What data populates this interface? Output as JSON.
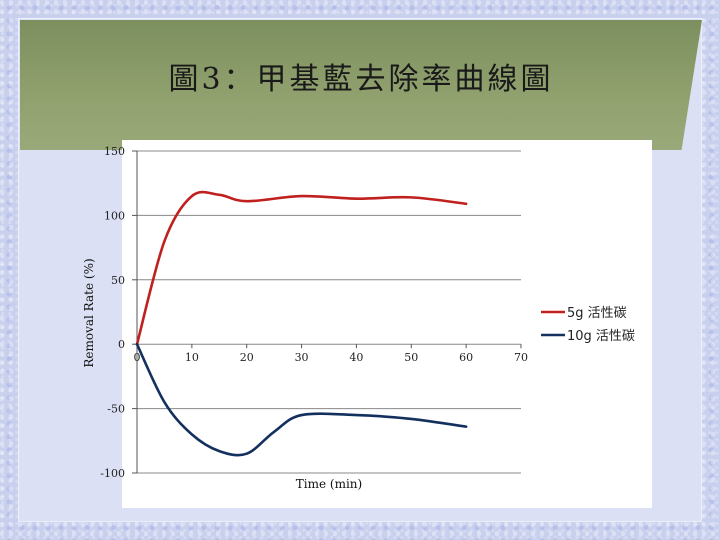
{
  "slide": {
    "title": "圖3：甲基藍去除率曲線圖"
  },
  "colors": {
    "series_5g": "#c0201e",
    "series_10g": "#13305e",
    "grid": "#888888"
  },
  "chart_data": {
    "type": "line",
    "title": "",
    "xlabel": "Time (min)",
    "ylabel": "Removal Rate (%)",
    "xlim": [
      0,
      70
    ],
    "ylim": [
      -100,
      150
    ],
    "xticks": [
      0,
      10,
      20,
      30,
      40,
      50,
      60,
      70
    ],
    "yticks": [
      150,
      100,
      50,
      0,
      -50,
      -100
    ],
    "grid": true,
    "legend_position": "right",
    "series": [
      {
        "name": "5g 活性碳",
        "x": [
          0,
          5,
          10,
          15,
          20,
          30,
          40,
          50,
          60
        ],
        "y": [
          0,
          80,
          115,
          116,
          111,
          115,
          113,
          114,
          109
        ]
      },
      {
        "name": "10g 活性碳",
        "x": [
          0,
          5,
          10,
          15,
          20,
          25,
          30,
          40,
          50,
          60
        ],
        "y": [
          0,
          -45,
          -70,
          -83,
          -85,
          -68,
          -55,
          -55,
          -58,
          -64
        ]
      }
    ]
  }
}
